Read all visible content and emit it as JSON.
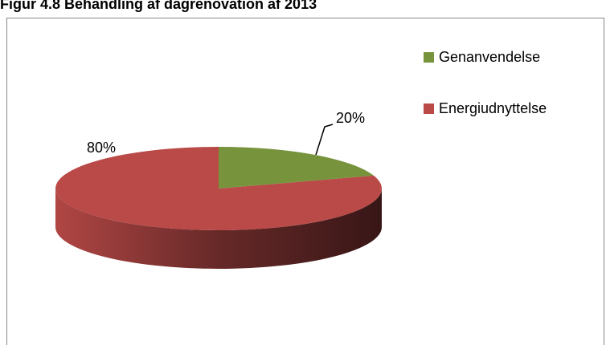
{
  "chart_data": {
    "type": "pie",
    "title": "Figur 4.8 Behandling af dagrenovation af 2013",
    "categories": [
      "Genanvendelse",
      "Energiudnyttelse"
    ],
    "values": [
      20,
      80
    ],
    "value_labels": [
      "20%",
      "80%"
    ],
    "colors": [
      "#77933c",
      "#b94a48"
    ],
    "legend": "right"
  }
}
